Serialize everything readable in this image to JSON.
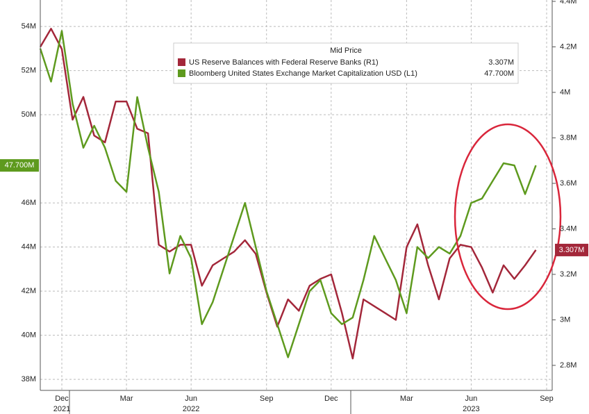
{
  "chart_data": {
    "type": "line",
    "legend_title": "Mid Price",
    "categories": [
      null,
      null,
      "Dec",
      null,
      null,
      null,
      null,
      null,
      "Mar",
      null,
      null,
      null,
      null,
      null,
      "Jun",
      null,
      null,
      null,
      null,
      null,
      null,
      "Sep",
      null,
      null,
      null,
      null,
      null,
      "Dec",
      null,
      null,
      null,
      null,
      null,
      null,
      "Mar",
      null,
      null,
      null,
      null,
      null,
      "Jun",
      null,
      null,
      null,
      null,
      null,
      null,
      "Sep"
    ],
    "years": [
      null,
      null,
      "2021",
      null,
      null,
      null,
      null,
      null,
      null,
      null,
      null,
      null,
      null,
      null,
      "2022",
      null,
      null,
      null,
      null,
      null,
      null,
      null,
      null,
      null,
      null,
      null,
      null,
      null,
      null,
      null,
      null,
      null,
      null,
      null,
      null,
      null,
      null,
      null,
      null,
      null,
      "2023",
      null,
      null,
      null,
      null,
      null,
      null,
      null
    ],
    "series": [
      {
        "name": "US Reserve Balances with Federal Reserve Banks  (R1)",
        "value_label": "3.307M",
        "color": "#a3273a",
        "axis": "y2",
        "values": [
          4.2,
          4.28,
          4.19,
          3.88,
          3.98,
          3.81,
          3.78,
          3.96,
          3.96,
          3.84,
          3.82,
          3.33,
          3.3,
          3.33,
          3.33,
          3.15,
          3.24,
          3.27,
          3.3,
          3.35,
          3.29,
          3.12,
          2.97,
          3.09,
          3.04,
          3.15,
          3.18,
          3.2,
          3.03,
          2.83,
          3.09,
          3.06,
          3.03,
          3.0,
          3.32,
          3.42,
          3.24,
          3.09,
          3.27,
          3.33,
          3.32,
          3.23,
          3.12,
          3.24,
          3.18,
          3.24,
          3.307,
          null
        ]
      },
      {
        "name": "Bloomberg United States Exchange Market Capitalization USD  (L1)",
        "value_label": "47.700M",
        "color": "#5e9a1e",
        "values": [
          53,
          51.5,
          53.8,
          50.5,
          48.5,
          49.5,
          48.5,
          47,
          46.5,
          50.8,
          48.5,
          46.5,
          42.8,
          44.5,
          43.5,
          40.5,
          41.5,
          43,
          44.5,
          46,
          44,
          42,
          40.5,
          39,
          40.5,
          42,
          42.5,
          41,
          40.5,
          40.8,
          42.5,
          44.5,
          43.5,
          42.5,
          41,
          44,
          43.5,
          44,
          43.7,
          44.5,
          46,
          46.2,
          47,
          47.8,
          47.7,
          46.4,
          47.7,
          null
        ]
      }
    ],
    "ylim": [
      37.5,
      55.2
    ],
    "yticks": [
      {
        "value": 38,
        "label": "38M"
      },
      {
        "value": 40,
        "label": "40M"
      },
      {
        "value": 42,
        "label": "42M"
      },
      {
        "value": 44,
        "label": "44M"
      },
      {
        "value": 46,
        "label": "46M"
      },
      {
        "value": 50,
        "label": "50M"
      },
      {
        "value": 52,
        "label": "52M"
      },
      {
        "value": 54,
        "label": "54M"
      }
    ],
    "y2lim": [
      2.69,
      4.406
    ],
    "y2ticks": [
      {
        "value": 2.8,
        "label": "2.8M"
      },
      {
        "value": 3,
        "label": "3M"
      },
      {
        "value": 3.2,
        "label": "3.2M"
      },
      {
        "value": 3.4,
        "label": "3.4M"
      },
      {
        "value": 3.6,
        "label": "3.6M"
      },
      {
        "value": 3.8,
        "label": "3.8M"
      },
      {
        "value": 4,
        "label": "4M"
      },
      {
        "value": 4.2,
        "label": "4.2M"
      },
      {
        "value": 4.4,
        "label": "4.4M"
      }
    ],
    "grid": true
  }
}
